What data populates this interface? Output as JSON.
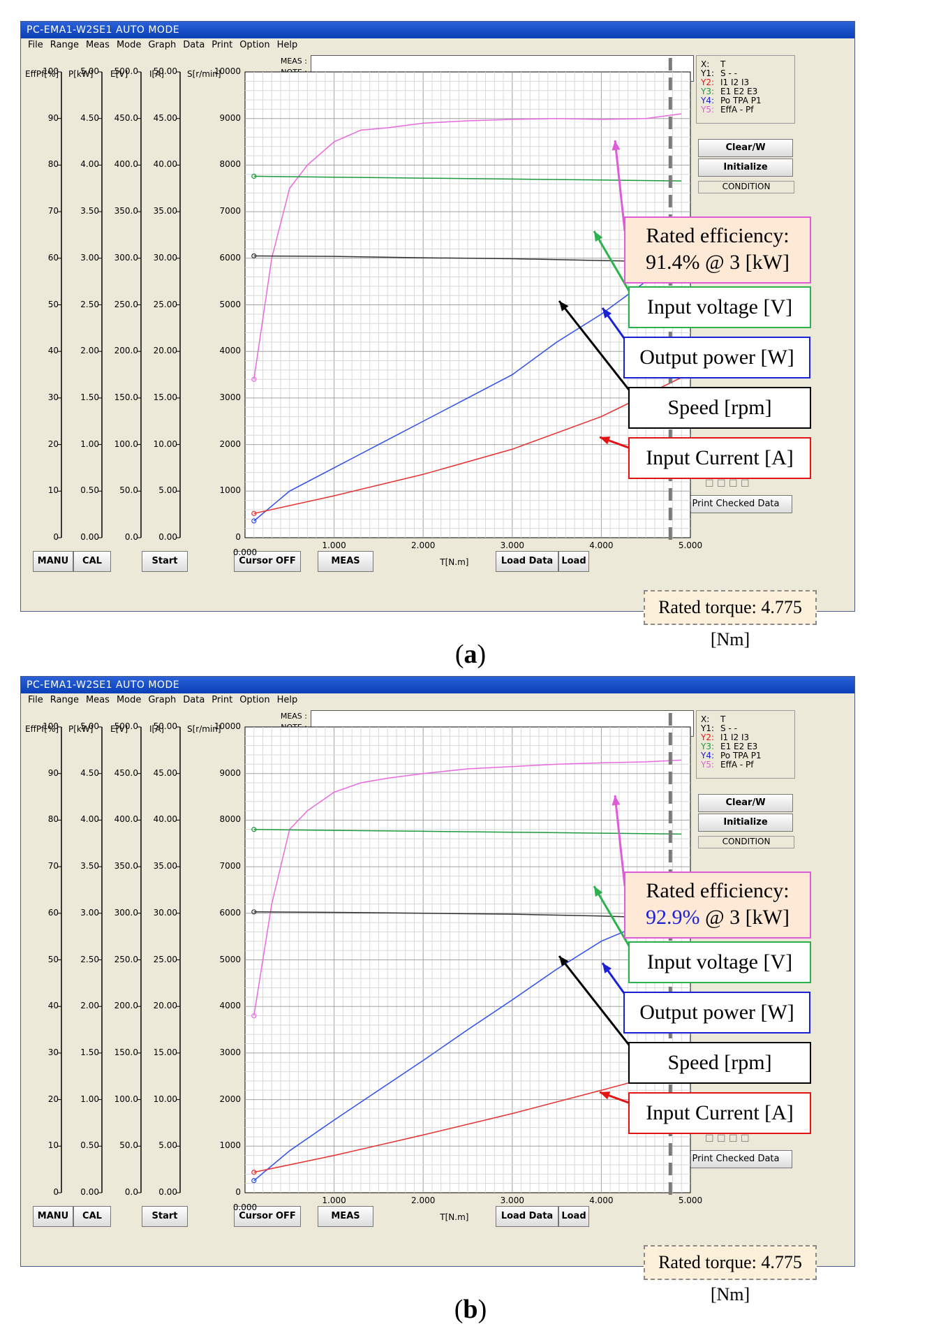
{
  "window": {
    "title": "PC-EMA1-W2SE1 AUTO MODE",
    "menu": [
      "File",
      "Range",
      "Meas",
      "Mode",
      "Graph",
      "Data",
      "Print",
      "Option",
      "Help"
    ]
  },
  "axes": {
    "heads": [
      "EffPf[%]",
      "P[kW]",
      "E[V]",
      "I[A]",
      "S[r/min]"
    ],
    "effpf_ticks": [
      "100",
      "90",
      "80",
      "70",
      "60",
      "50",
      "40",
      "30",
      "20",
      "10",
      "0"
    ],
    "p_ticks": [
      "5.00",
      "4.50",
      "4.00",
      "3.50",
      "3.00",
      "2.50",
      "2.00",
      "1.50",
      "1.00",
      "0.50",
      "0.00"
    ],
    "e_ticks": [
      "500.0",
      "450.0",
      "400.0",
      "350.0",
      "300.0",
      "250.0",
      "200.0",
      "150.0",
      "100.0",
      "50.0",
      "0.0"
    ],
    "i_ticks": [
      "50.00",
      "45.00",
      "40.00",
      "35.00",
      "30.00",
      "25.00",
      "20.00",
      "15.00",
      "10.00",
      "5.00",
      "0.00"
    ],
    "s_ticks": [
      "10000",
      "9000",
      "8000",
      "7000",
      "6000",
      "5000",
      "4000",
      "3000",
      "2000",
      "1000",
      "0"
    ],
    "x_ticks": [
      "0.000",
      "1.000",
      "2.000",
      "3.000",
      "4.000",
      "5.000"
    ],
    "x_label": "T[N.m]"
  },
  "meas": {
    "meas_label": "MEAS :",
    "note_label": "NOTE :"
  },
  "legend": [
    {
      "key": "X:",
      "value": "T",
      "color": "#000000"
    },
    {
      "key": "Y1:",
      "value": "S - -",
      "color": "#000000"
    },
    {
      "key": "Y2:",
      "value": "I1 I2 I3",
      "color": "#e31414"
    },
    {
      "key": "Y3:",
      "value": "E1 E2 E3",
      "color": "#1a9a3a"
    },
    {
      "key": "Y4:",
      "value": "Po TPA P1",
      "color": "#1a20d6"
    },
    {
      "key": "Y5:",
      "value": "EffA - Pf",
      "color": "#e05bd8"
    }
  ],
  "side": {
    "clear_label": "Clear/W",
    "init_label": "Initialize",
    "condition_label": "CONDITION",
    "sel_items": [
      "1",
      "2",
      "3",
      "4"
    ],
    "print_label": "Print Checked Data"
  },
  "buttons": {
    "manu": "MANU",
    "cal": "CAL",
    "start": "Start",
    "cursor": "Cursor OFF",
    "meas": "MEAS",
    "load_data": "Load Data",
    "load2": "Load"
  },
  "panels": [
    {
      "caption": "a",
      "eff_line1": "Rated efficiency:",
      "eff_value": "91.4%",
      "eff_rest": " @ 3 [kW]",
      "eff_value_color": "#000000",
      "volt": "Input voltage [V]",
      "power": "Output power [W]",
      "speed": "Speed [rpm]",
      "current": "Input Current [A]",
      "torque": "Rated torque: 4.775 [Nm]"
    },
    {
      "caption": "b",
      "eff_line1": "Rated efficiency:",
      "eff_value": "92.9%",
      "eff_rest": " @ 3 [kW]",
      "eff_value_color": "#1a20d6",
      "volt": "Input voltage [V]",
      "power": "Output power [W]",
      "speed": "Speed [rpm]",
      "current": "Input Current [A]",
      "torque": "Rated torque: 4.775 [Nm]"
    }
  ],
  "chart_data": [
    {
      "type": "line",
      "x_label": "T[N.m]",
      "xlim": [
        0,
        5
      ],
      "rated_torque_marker": 4.775,
      "series": [
        {
          "name": "EffA",
          "axis": "EffPf[%]",
          "color": "#e86ae0",
          "x": [
            0.1,
            0.3,
            0.5,
            0.7,
            1.0,
            1.3,
            1.6,
            2.0,
            2.5,
            3.0,
            3.5,
            4.0,
            4.5,
            4.9
          ],
          "y": [
            34,
            60,
            75,
            80,
            85,
            87.5,
            88,
            89,
            89.5,
            89.8,
            90,
            89.8,
            90,
            91
          ]
        },
        {
          "name": "E1 E2 E3",
          "axis": "E[V]",
          "color": "#1a9a3a",
          "x": [
            0.1,
            1.0,
            2.0,
            3.0,
            4.0,
            4.9
          ],
          "y": [
            388,
            387,
            386,
            385,
            384,
            383
          ]
        },
        {
          "name": "S",
          "axis": "S[r/min]",
          "color": "#333333",
          "x": [
            0.1,
            1.0,
            2.0,
            3.0,
            4.0,
            4.9
          ],
          "y": [
            6050,
            6040,
            6010,
            5990,
            5950,
            5920
          ]
        },
        {
          "name": "Po",
          "axis": "P[kW]",
          "color": "#3050e8",
          "x": [
            0.1,
            0.5,
            1.0,
            1.5,
            2.0,
            2.5,
            3.0,
            3.5,
            4.0,
            4.5,
            4.9
          ],
          "y": [
            0.18,
            0.5,
            0.75,
            1.0,
            1.25,
            1.5,
            1.75,
            2.1,
            2.4,
            2.75,
            3.05
          ]
        },
        {
          "name": "I1 I2 I3",
          "axis": "I[A]",
          "color": "#e83030",
          "x": [
            0.1,
            1.0,
            2.0,
            3.0,
            4.0,
            4.9
          ],
          "y": [
            2.6,
            4.5,
            6.8,
            9.5,
            13.0,
            17.2
          ]
        }
      ]
    },
    {
      "type": "line",
      "x_label": "T[N.m]",
      "xlim": [
        0,
        5
      ],
      "rated_torque_marker": 4.775,
      "series": [
        {
          "name": "EffA",
          "axis": "EffPf[%]",
          "color": "#e86ae0",
          "x": [
            0.1,
            0.3,
            0.5,
            0.7,
            1.0,
            1.3,
            1.6,
            2.0,
            2.5,
            3.0,
            3.5,
            4.0,
            4.5,
            4.9
          ],
          "y": [
            38,
            62,
            78,
            82,
            86,
            88,
            89,
            90,
            91,
            91.5,
            92,
            92.3,
            92.5,
            92.9
          ]
        },
        {
          "name": "E1 E2 E3",
          "axis": "E[V]",
          "color": "#1a9a3a",
          "x": [
            0.1,
            1.0,
            2.0,
            3.0,
            4.0,
            4.9
          ],
          "y": [
            390,
            389,
            388,
            387,
            386,
            385
          ]
        },
        {
          "name": "S",
          "axis": "S[r/min]",
          "color": "#333333",
          "x": [
            0.1,
            1.0,
            2.0,
            3.0,
            4.0,
            4.9
          ],
          "y": [
            6030,
            6020,
            6000,
            5980,
            5940,
            5890
          ]
        },
        {
          "name": "Po",
          "axis": "P[kW]",
          "color": "#3050e8",
          "x": [
            0.1,
            0.5,
            1.0,
            1.5,
            2.0,
            2.5,
            3.0,
            3.5,
            4.0,
            4.5,
            4.9
          ],
          "y": [
            0.13,
            0.45,
            0.78,
            1.1,
            1.42,
            1.75,
            2.07,
            2.4,
            2.7,
            2.9,
            3.08
          ]
        },
        {
          "name": "I1 I2 I3",
          "axis": "I[A]",
          "color": "#e83030",
          "x": [
            0.1,
            1.0,
            2.0,
            3.0,
            4.0,
            4.9
          ],
          "y": [
            2.2,
            4.0,
            6.2,
            8.5,
            11.0,
            13.3
          ]
        }
      ]
    }
  ]
}
